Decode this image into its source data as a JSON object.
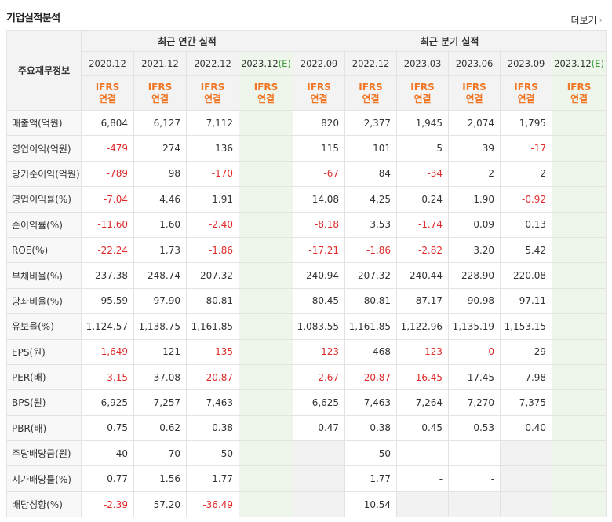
{
  "header": {
    "title": "기업실적분석",
    "more": "더보기"
  },
  "groups": {
    "annual": "최근 연간 실적",
    "quarter": "최근 분기 실적"
  },
  "row_header": "주요재무정보",
  "periods": [
    {
      "label": "2020.12",
      "est": false
    },
    {
      "label": "2021.12",
      "est": false
    },
    {
      "label": "2022.12",
      "est": false
    },
    {
      "label": "2023.12",
      "est": true,
      "est_mark": "(E)"
    },
    {
      "label": "2022.09",
      "est": false
    },
    {
      "label": "2022.12",
      "est": false
    },
    {
      "label": "2023.03",
      "est": false
    },
    {
      "label": "2023.06",
      "est": false
    },
    {
      "label": "2023.09",
      "est": false
    },
    {
      "label": "2023.12",
      "est": true,
      "est_mark": "(E)"
    }
  ],
  "accounting": {
    "line1": "IFRS",
    "line2": "연결"
  },
  "rows": [
    {
      "label": "매출액(억원)",
      "values": [
        "6,804",
        "6,127",
        "7,112",
        "",
        "820",
        "2,377",
        "1,945",
        "2,074",
        "1,795",
        ""
      ]
    },
    {
      "label": "영업이익(억원)",
      "values": [
        "-479",
        "274",
        "136",
        "",
        "115",
        "101",
        "5",
        "39",
        "-17",
        ""
      ]
    },
    {
      "label": "당기순이익(억원)",
      "values": [
        "-789",
        "98",
        "-170",
        "",
        "-67",
        "84",
        "-34",
        "2",
        "2",
        ""
      ]
    },
    {
      "label": "영업이익률(%)",
      "values": [
        "-7.04",
        "4.46",
        "1.91",
        "",
        "14.08",
        "4.25",
        "0.24",
        "1.90",
        "-0.92",
        ""
      ]
    },
    {
      "label": "순이익률(%)",
      "values": [
        "-11.60",
        "1.60",
        "-2.40",
        "",
        "-8.18",
        "3.53",
        "-1.74",
        "0.09",
        "0.13",
        ""
      ]
    },
    {
      "label": "ROE(%)",
      "values": [
        "-22.24",
        "1.73",
        "-1.86",
        "",
        "-17.21",
        "-1.86",
        "-2.82",
        "3.20",
        "5.42",
        ""
      ]
    },
    {
      "label": "부채비율(%)",
      "values": [
        "237.38",
        "248.74",
        "207.32",
        "",
        "240.94",
        "207.32",
        "240.44",
        "228.90",
        "220.08",
        ""
      ]
    },
    {
      "label": "당좌비율(%)",
      "values": [
        "95.59",
        "97.90",
        "80.81",
        "",
        "80.45",
        "80.81",
        "87.17",
        "90.98",
        "97.11",
        ""
      ]
    },
    {
      "label": "유보율(%)",
      "values": [
        "1,124.57",
        "1,138.75",
        "1,161.85",
        "",
        "1,083.55",
        "1,161.85",
        "1,122.96",
        "1,135.19",
        "1,153.15",
        ""
      ]
    },
    {
      "label": "EPS(원)",
      "values": [
        "-1,649",
        "121",
        "-135",
        "",
        "-123",
        "468",
        "-123",
        "-0",
        "29",
        ""
      ]
    },
    {
      "label": "PER(배)",
      "values": [
        "-3.15",
        "37.08",
        "-20.87",
        "",
        "-2.67",
        "-20.87",
        "-16.45",
        "17.45",
        "7.98",
        ""
      ]
    },
    {
      "label": "BPS(원)",
      "values": [
        "6,925",
        "7,257",
        "7,463",
        "",
        "6,625",
        "7,463",
        "7,264",
        "7,270",
        "7,375",
        ""
      ]
    },
    {
      "label": "PBR(배)",
      "values": [
        "0.75",
        "0.62",
        "0.38",
        "",
        "0.47",
        "0.38",
        "0.45",
        "0.53",
        "0.40",
        ""
      ]
    },
    {
      "label": "주당배당금(원)",
      "values": [
        "40",
        "70",
        "50",
        "",
        "",
        "50",
        "-",
        "-",
        "",
        ""
      ]
    },
    {
      "label": "시가배당률(%)",
      "values": [
        "0.77",
        "1.56",
        "1.77",
        "",
        "",
        "1.77",
        "-",
        "-",
        "",
        ""
      ]
    },
    {
      "label": "배당성향(%)",
      "values": [
        "-2.39",
        "57.20",
        "-36.49",
        "",
        "",
        "10.54",
        "",
        "",
        "",
        ""
      ]
    }
  ]
}
